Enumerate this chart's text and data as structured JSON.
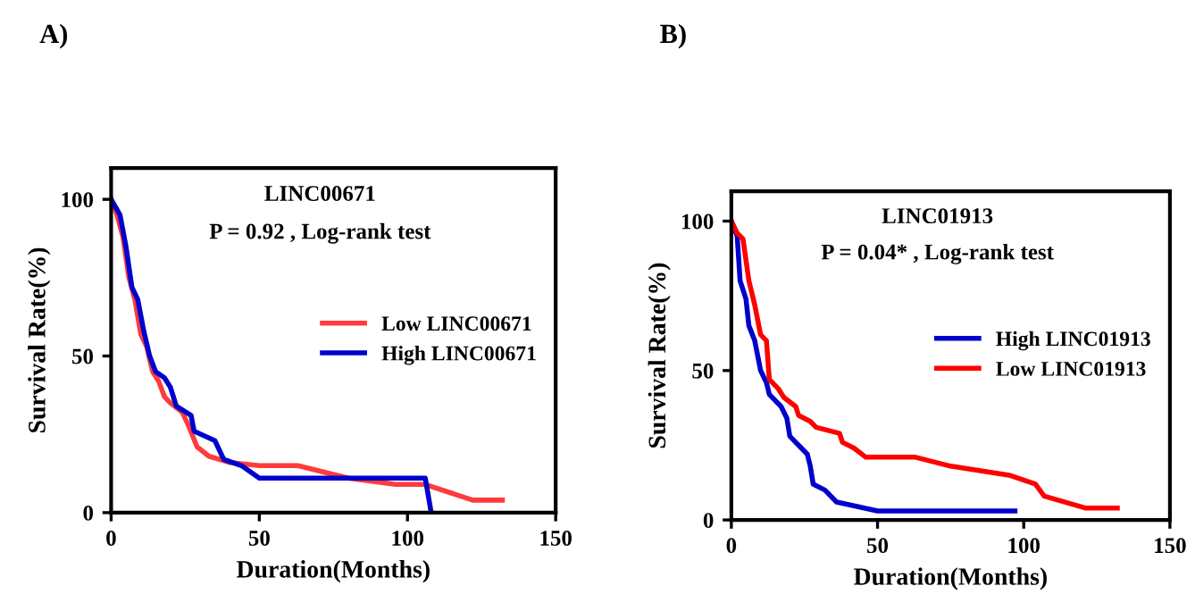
{
  "chart_data": [
    {
      "type": "line",
      "title": "LINC00671",
      "subtitle": "P = 0.92 , Log-rank test",
      "xlabel": "Duration(Months)",
      "ylabel": "Survival Rate(%)",
      "annotations": [
        "A)"
      ],
      "xlim": [
        0,
        150
      ],
      "xticks": [
        0,
        50,
        100,
        150
      ],
      "ylim": [
        0,
        110
      ],
      "yticks": [
        0,
        50,
        100
      ],
      "grid": false,
      "legend": "right",
      "marker": "none",
      "line_style": "solid",
      "series": [
        {
          "name": "Low LINC00671",
          "color": "#ff3b3b",
          "x": [
            0,
            2,
            4,
            6,
            8,
            10,
            12,
            14,
            16,
            18,
            20,
            24,
            26,
            29,
            33,
            40,
            50,
            63,
            80,
            96,
            106,
            122,
            132
          ],
          "values": [
            100,
            95,
            88,
            75,
            68,
            57,
            53,
            45,
            42,
            37,
            35,
            32,
            28,
            21,
            18,
            16,
            15,
            15,
            11,
            9,
            9,
            4,
            4
          ]
        },
        {
          "name": "High LINC00671",
          "color": "#0000cc",
          "x": [
            0,
            3,
            5,
            7,
            9,
            11,
            13,
            15,
            18,
            20,
            22,
            27,
            28,
            35,
            38,
            44,
            50,
            63,
            106,
            108
          ],
          "values": [
            100,
            95,
            85,
            72,
            68,
            58,
            50,
            45,
            43,
            40,
            34,
            31,
            26,
            23,
            17,
            15,
            11,
            11,
            11,
            0
          ]
        }
      ]
    },
    {
      "type": "line",
      "title": "LINC01913",
      "subtitle": "P = 0.04* , Log-rank test",
      "xlabel": "Duration(Months)",
      "ylabel": "Survival Rate(%)",
      "annotations": [
        "B)"
      ],
      "xlim": [
        0,
        150
      ],
      "xticks": [
        0,
        50,
        100,
        150
      ],
      "ylim": [
        0,
        110
      ],
      "yticks": [
        0,
        50,
        100
      ],
      "grid": false,
      "legend": "right",
      "marker": "none",
      "line_style": "solid",
      "series": [
        {
          "name": "High LINC01913",
          "color": "#0000cc",
          "x": [
            0,
            2,
            3,
            5,
            6,
            8,
            10,
            12,
            13,
            17,
            19,
            20,
            24,
            26,
            27,
            28,
            32,
            36,
            50,
            97
          ],
          "values": [
            100,
            95,
            80,
            74,
            65,
            60,
            50,
            46,
            42,
            38,
            34,
            28,
            24,
            22,
            18,
            12,
            10,
            6,
            3,
            3
          ]
        },
        {
          "name": "Low LINC01913",
          "color": "#ff0000",
          "x": [
            0,
            2,
            4,
            6,
            8,
            10,
            12,
            13,
            16,
            18,
            22,
            23,
            27,
            29,
            37,
            38,
            42,
            46,
            63,
            75,
            95,
            104,
            107,
            121,
            132
          ],
          "values": [
            100,
            96,
            94,
            80,
            72,
            62,
            60,
            47,
            44,
            41,
            38,
            35,
            33,
            31,
            29,
            26,
            24,
            21,
            21,
            18,
            15,
            12,
            8,
            4,
            4
          ]
        }
      ]
    }
  ]
}
